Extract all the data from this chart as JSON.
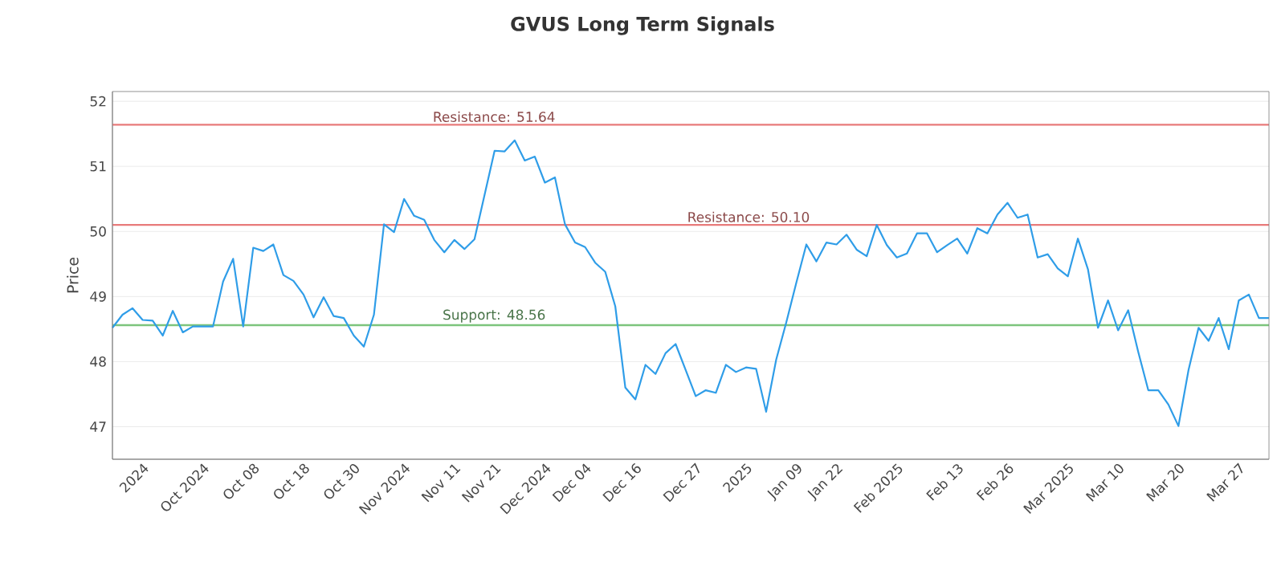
{
  "chart_data": {
    "type": "line",
    "title": "GVUS Long Term Signals",
    "ylabel": "Price",
    "categories": [
      null,
      null,
      null,
      "2024",
      null,
      null,
      null,
      null,
      null,
      "Oct 2024",
      null,
      null,
      null,
      null,
      "Oct 08",
      null,
      null,
      null,
      null,
      "Oct 18",
      null,
      null,
      null,
      null,
      "Oct 30",
      null,
      null,
      null,
      null,
      "Nov 2024",
      null,
      null,
      null,
      null,
      "Nov 11",
      null,
      null,
      null,
      "Nov 21",
      null,
      null,
      null,
      null,
      "Dec 2024",
      null,
      null,
      null,
      "Dec 04",
      null,
      null,
      null,
      null,
      "Dec 16",
      null,
      null,
      null,
      null,
      null,
      "Dec 27",
      null,
      null,
      null,
      null,
      "2025",
      null,
      null,
      null,
      null,
      "Jan 09",
      null,
      null,
      null,
      "Jan 22",
      null,
      null,
      null,
      null,
      null,
      "Feb 2025",
      null,
      null,
      null,
      null,
      null,
      "Feb 13",
      null,
      null,
      null,
      null,
      "Feb 26",
      null,
      null,
      null,
      null,
      null,
      "Mar 2025",
      null,
      null,
      null,
      null,
      "Mar 10",
      null,
      null,
      null,
      null,
      null,
      "Mar 20",
      null,
      null,
      null,
      null,
      null,
      "Mar 27",
      null,
      null,
      null
    ],
    "series": [
      {
        "color": "#2f9de8",
        "values": [
          48.52,
          48.72,
          48.82,
          48.64,
          48.63,
          48.4,
          48.78,
          48.45,
          48.54,
          48.54,
          48.54,
          49.23,
          49.58,
          48.54,
          49.75,
          49.7,
          49.8,
          49.33,
          49.24,
          49.03,
          48.68,
          48.99,
          48.7,
          48.67,
          48.4,
          48.23,
          48.72,
          50.11,
          49.99,
          50.5,
          50.24,
          50.18,
          49.87,
          49.68,
          49.87,
          49.73,
          49.88,
          50.56,
          51.24,
          51.23,
          51.4,
          51.09,
          51.15,
          50.75,
          50.83,
          50.11,
          49.83,
          49.76,
          49.52,
          49.38,
          48.85,
          47.6,
          47.42,
          47.95,
          47.81,
          48.13,
          48.27,
          47.87,
          47.47,
          47.56,
          47.52,
          47.95,
          47.84,
          47.91,
          47.89,
          47.23,
          48.03,
          48.6,
          49.21,
          49.8,
          49.54,
          49.83,
          49.8,
          49.95,
          49.72,
          49.62,
          50.1,
          49.79,
          49.6,
          49.66,
          49.97,
          49.97,
          49.68,
          49.79,
          49.89,
          49.66,
          50.05,
          49.97,
          50.26,
          50.44,
          50.21,
          50.26,
          49.6,
          49.65,
          49.43,
          49.31,
          49.89,
          49.42,
          48.52,
          48.94,
          48.48,
          48.79,
          48.15,
          47.56,
          47.56,
          47.34,
          47.01,
          47.87,
          48.52,
          48.32,
          48.67,
          48.19,
          48.94,
          49.03,
          48.67,
          48.67
        ]
      }
    ],
    "ylim": [
      46.5,
      52.15
    ],
    "yticks": [
      47,
      48,
      49,
      50,
      51,
      52
    ],
    "ref_lines": [
      {
        "axis": "y",
        "value": 51.64,
        "label": "Resistance: 51.64",
        "color": "#e87a7a"
      },
      {
        "axis": "y",
        "value": 50.1,
        "label": "Resistance: 50.10",
        "color": "#e87a7a"
      },
      {
        "axis": "y",
        "value": 48.56,
        "label": "Support: 48.56",
        "color": "#7cc47c"
      }
    ],
    "grid": "y",
    "marker": "none",
    "line_style": "solid"
  }
}
